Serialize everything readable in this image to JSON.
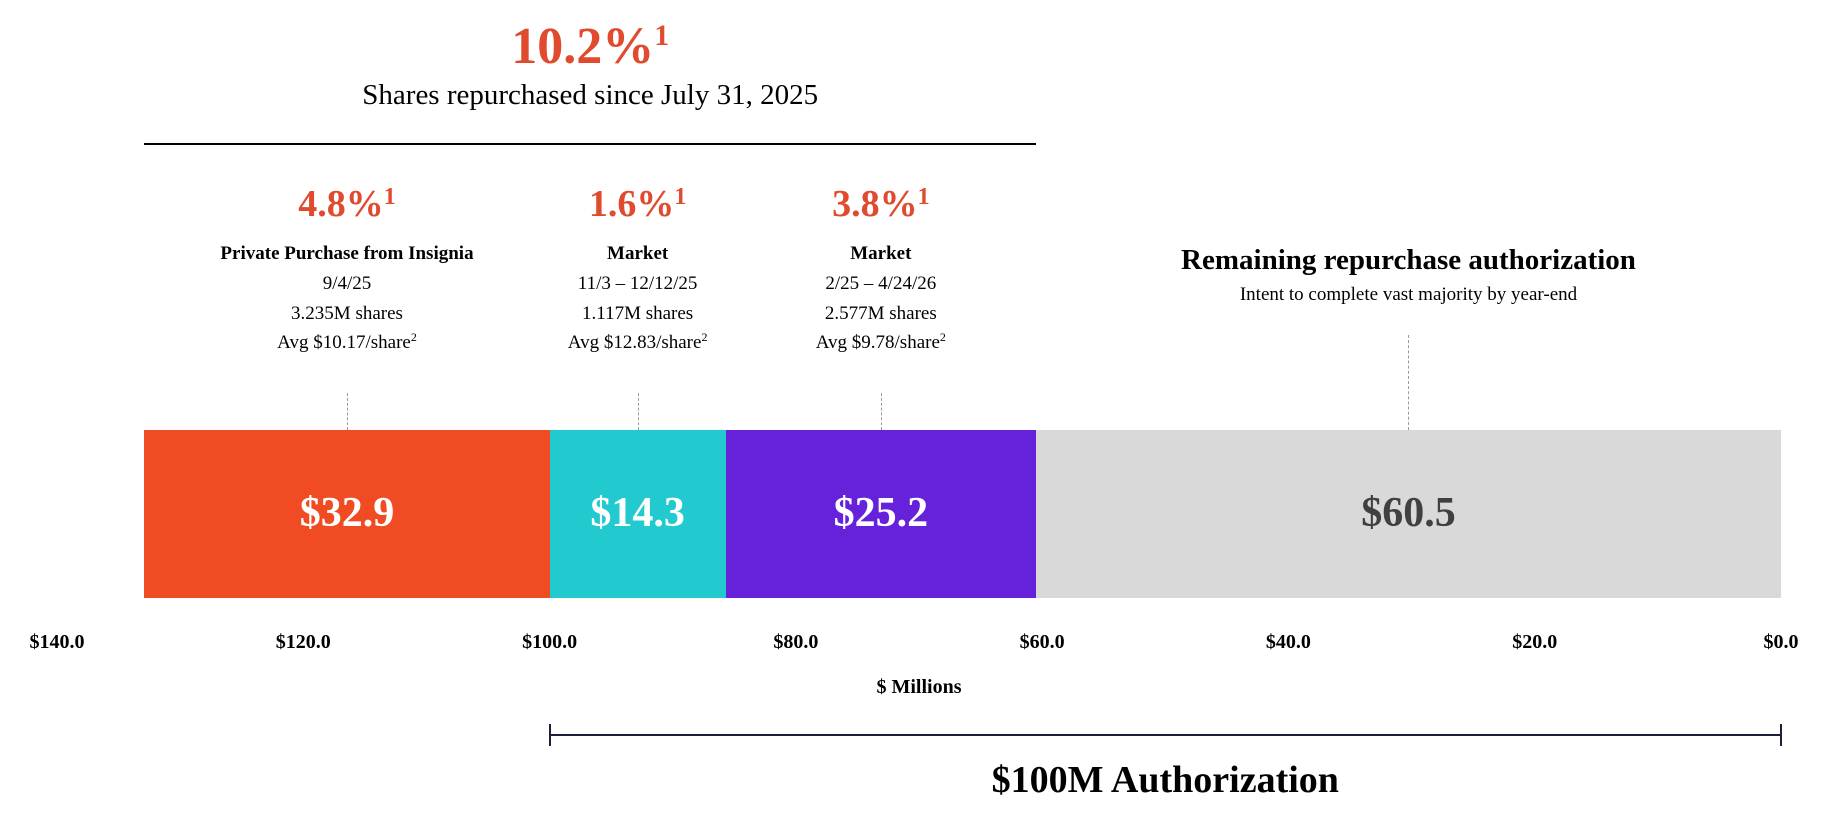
{
  "headline": {
    "value": "10.2%",
    "footnote": "1",
    "subtitle": "Shares repurchased since July 31, 2025"
  },
  "remaining": {
    "label": "Remaining repurchase authorization",
    "note": "Intent to complete vast majority by year-end"
  },
  "authorization": {
    "label": "$100M Authorization",
    "range": [
      100,
      0
    ]
  },
  "chart_data": {
    "type": "bar",
    "orientation": "horizontal-stacked",
    "xlabel": "$ Millions",
    "xlim": [
      140,
      0
    ],
    "x_reversed": true,
    "x_ticks": [
      140,
      120,
      100,
      80,
      60,
      40,
      20,
      0
    ],
    "x_tick_labels": [
      "$140.0",
      "$120.0",
      "$100.0",
      "$80.0",
      "$60.0",
      "$40.0",
      "$20.0",
      "$0.0"
    ],
    "grid": false,
    "segments": [
      {
        "value": 32.9,
        "value_label": "$32.9",
        "color": "#F04B22",
        "text_color": "#FFFFFF",
        "pct": "4.8%",
        "footnote": "1",
        "label": "Private Purchase from Insignia",
        "date": "9/4/25",
        "shares": "3.235M shares",
        "avg": "Avg $10.17/share",
        "avg_footnote": "2"
      },
      {
        "value": 14.3,
        "value_label": "$14.3",
        "color": "#22CAD0",
        "text_color": "#FFFFFF",
        "pct": "1.6%",
        "footnote": "1",
        "label": "Market",
        "date": "11/3 – 12/12/25",
        "shares": "1.117M shares",
        "avg": "Avg $12.83/share",
        "avg_footnote": "2"
      },
      {
        "value": 25.2,
        "value_label": "$25.2",
        "color": "#6622DA",
        "text_color": "#FFFFFF",
        "pct": "3.8%",
        "footnote": "1",
        "label": "Market",
        "date": "2/25 – 4/24/26",
        "shares": "2.577M shares",
        "avg": "Avg $9.78/share",
        "avg_footnote": "2"
      },
      {
        "value": 60.5,
        "value_label": "$60.5",
        "color": "#D9D9D9",
        "text_color": "#404040",
        "remaining": true
      }
    ]
  }
}
